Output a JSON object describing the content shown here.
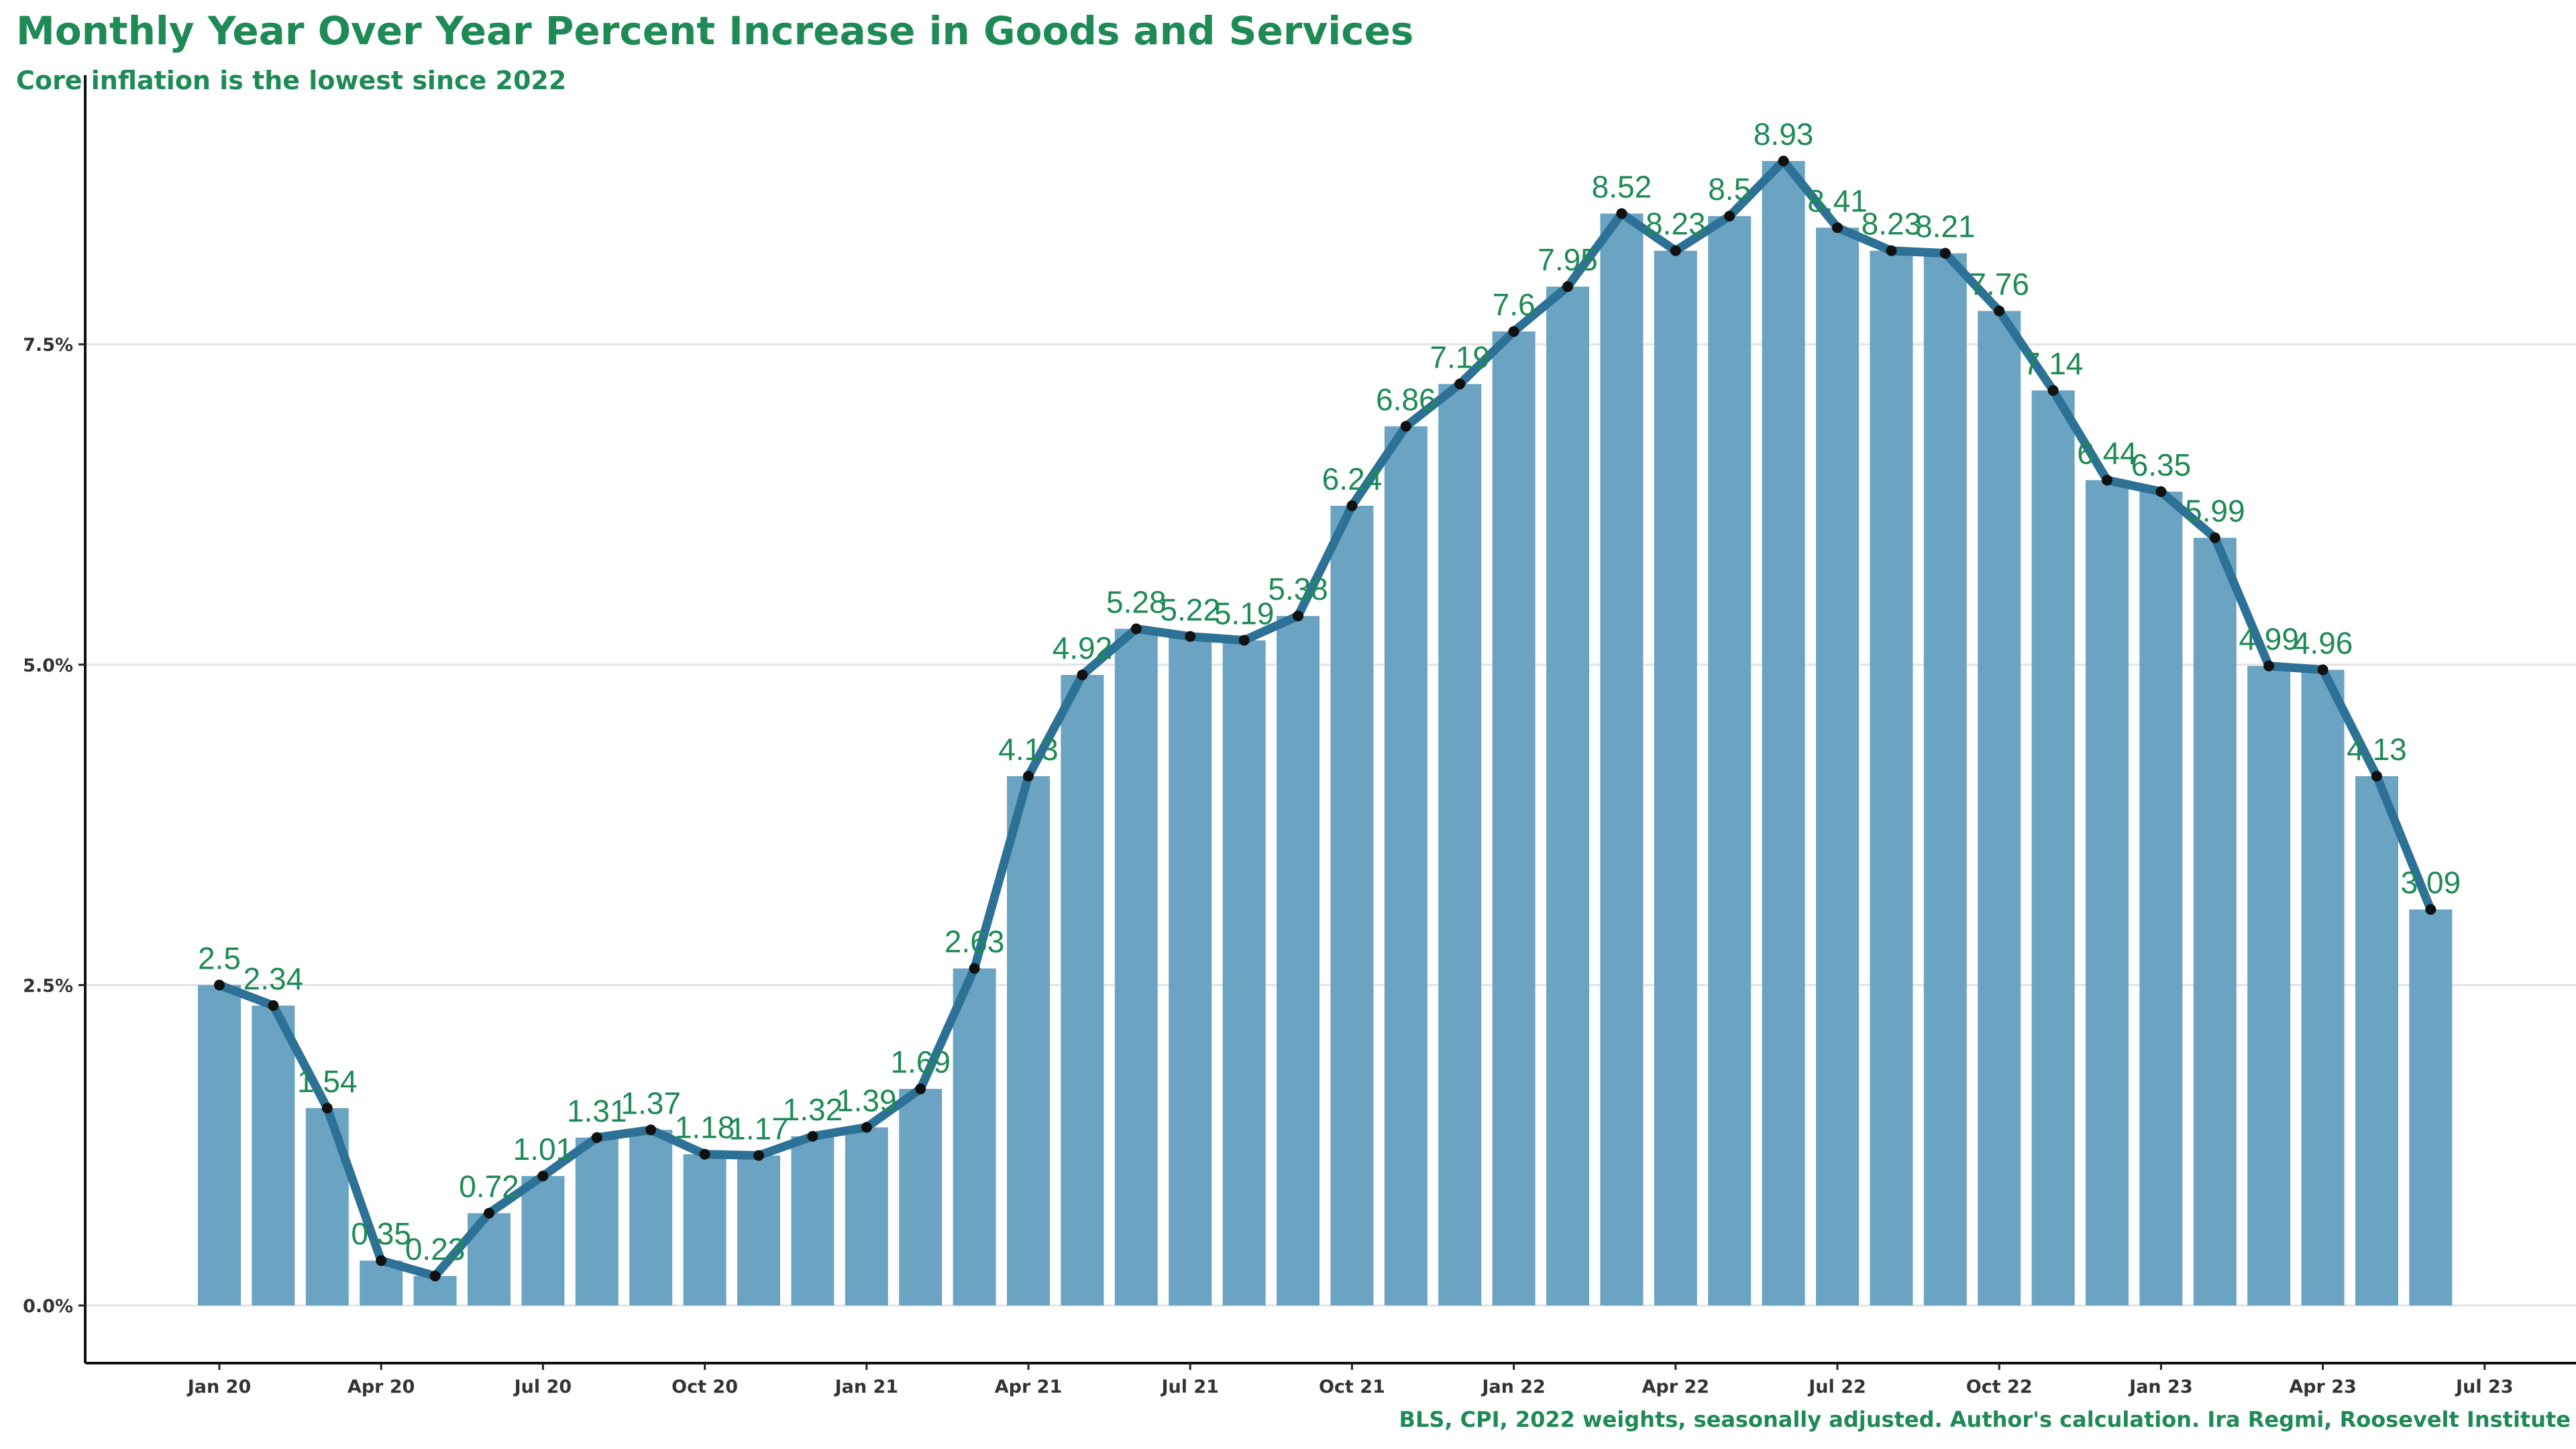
{
  "chart_data": {
    "type": "bar",
    "title": "Monthly Year Over Year Percent Increase in  Goods and Services",
    "subtitle": "Core inflation is the lowest since 2022",
    "caption": "BLS, CPI, 2022 weights, seasonally adjusted. Author's calculation. Ira Regmi, Roosevelt Institute",
    "xlabel": "",
    "ylabel": "",
    "ylim": [
      -0.45,
      9.6
    ],
    "grid": true,
    "legend": "none",
    "series_overlay": "line with points over bars",
    "colors": {
      "bar": "#6ba3c2",
      "line": "#2d7196",
      "point": "#111111",
      "label": "#1e8a55",
      "title": "#1e8a55"
    },
    "x_ticks": [
      "Jan 20",
      "Apr 20",
      "Jul 20",
      "Oct 20",
      "Jan 21",
      "Apr 21",
      "Jul 21",
      "Oct 21",
      "Jan 22",
      "Apr 22",
      "Jul 22",
      "Oct 22",
      "Jan 23",
      "Apr 23",
      "Jul 23"
    ],
    "y_ticks": [
      {
        "value": 0,
        "label": "0.0%"
      },
      {
        "value": 2.5,
        "label": "2.5%"
      },
      {
        "value": 5,
        "label": "5.0%"
      },
      {
        "value": 7.5,
        "label": "7.5%"
      }
    ],
    "categories": [
      "Jan 20",
      "Feb 20",
      "Mar 20",
      "Apr 20",
      "May 20",
      "Jun 20",
      "Jul 20",
      "Aug 20",
      "Sep 20",
      "Oct 20",
      "Nov 20",
      "Dec 20",
      "Jan 21",
      "Feb 21",
      "Mar 21",
      "Apr 21",
      "May 21",
      "Jun 21",
      "Jul 21",
      "Aug 21",
      "Sep 21",
      "Oct 21",
      "Nov 21",
      "Dec 21",
      "Jan 22",
      "Feb 22",
      "Mar 22",
      "Apr 22",
      "May 22",
      "Jun 22",
      "Jul 22",
      "Aug 22",
      "Sep 22",
      "Oct 22",
      "Nov 22",
      "Dec 22",
      "Jan 23",
      "Feb 23",
      "Mar 23",
      "Apr 23",
      "May 23",
      "Jun 23"
    ],
    "values": [
      2.5,
      2.34,
      1.54,
      0.35,
      0.23,
      0.72,
      1.01,
      1.31,
      1.37,
      1.18,
      1.17,
      1.32,
      1.39,
      1.69,
      2.63,
      4.13,
      4.92,
      5.28,
      5.22,
      5.19,
      5.38,
      6.24,
      6.86,
      7.19,
      7.6,
      7.95,
      8.52,
      8.23,
      8.5,
      8.93,
      8.41,
      8.23,
      8.21,
      7.76,
      7.14,
      6.44,
      6.35,
      5.99,
      4.99,
      4.96,
      4.13,
      3.09
    ],
    "labels": [
      "2.5",
      "2.34",
      "1.54",
      "0.35",
      "0.23",
      "0.72",
      "1.01",
      "1.31",
      "1.37",
      "1.18",
      "1.17",
      "1.32",
      "1.39",
      "1.69",
      "2.63",
      "4.13",
      "4.92",
      "5.28",
      "5.22",
      "5.19",
      "5.38",
      "6.24",
      "6.86",
      "7.19",
      "7.6",
      "7.95",
      "8.52",
      "8.23",
      "8.5",
      "8.93",
      "8.41",
      "8.23",
      "8.21",
      "7.76",
      "7.14",
      "6.44",
      "6.35",
      "5.99",
      "4.99",
      "4.96",
      "4.13",
      "3.09"
    ]
  }
}
